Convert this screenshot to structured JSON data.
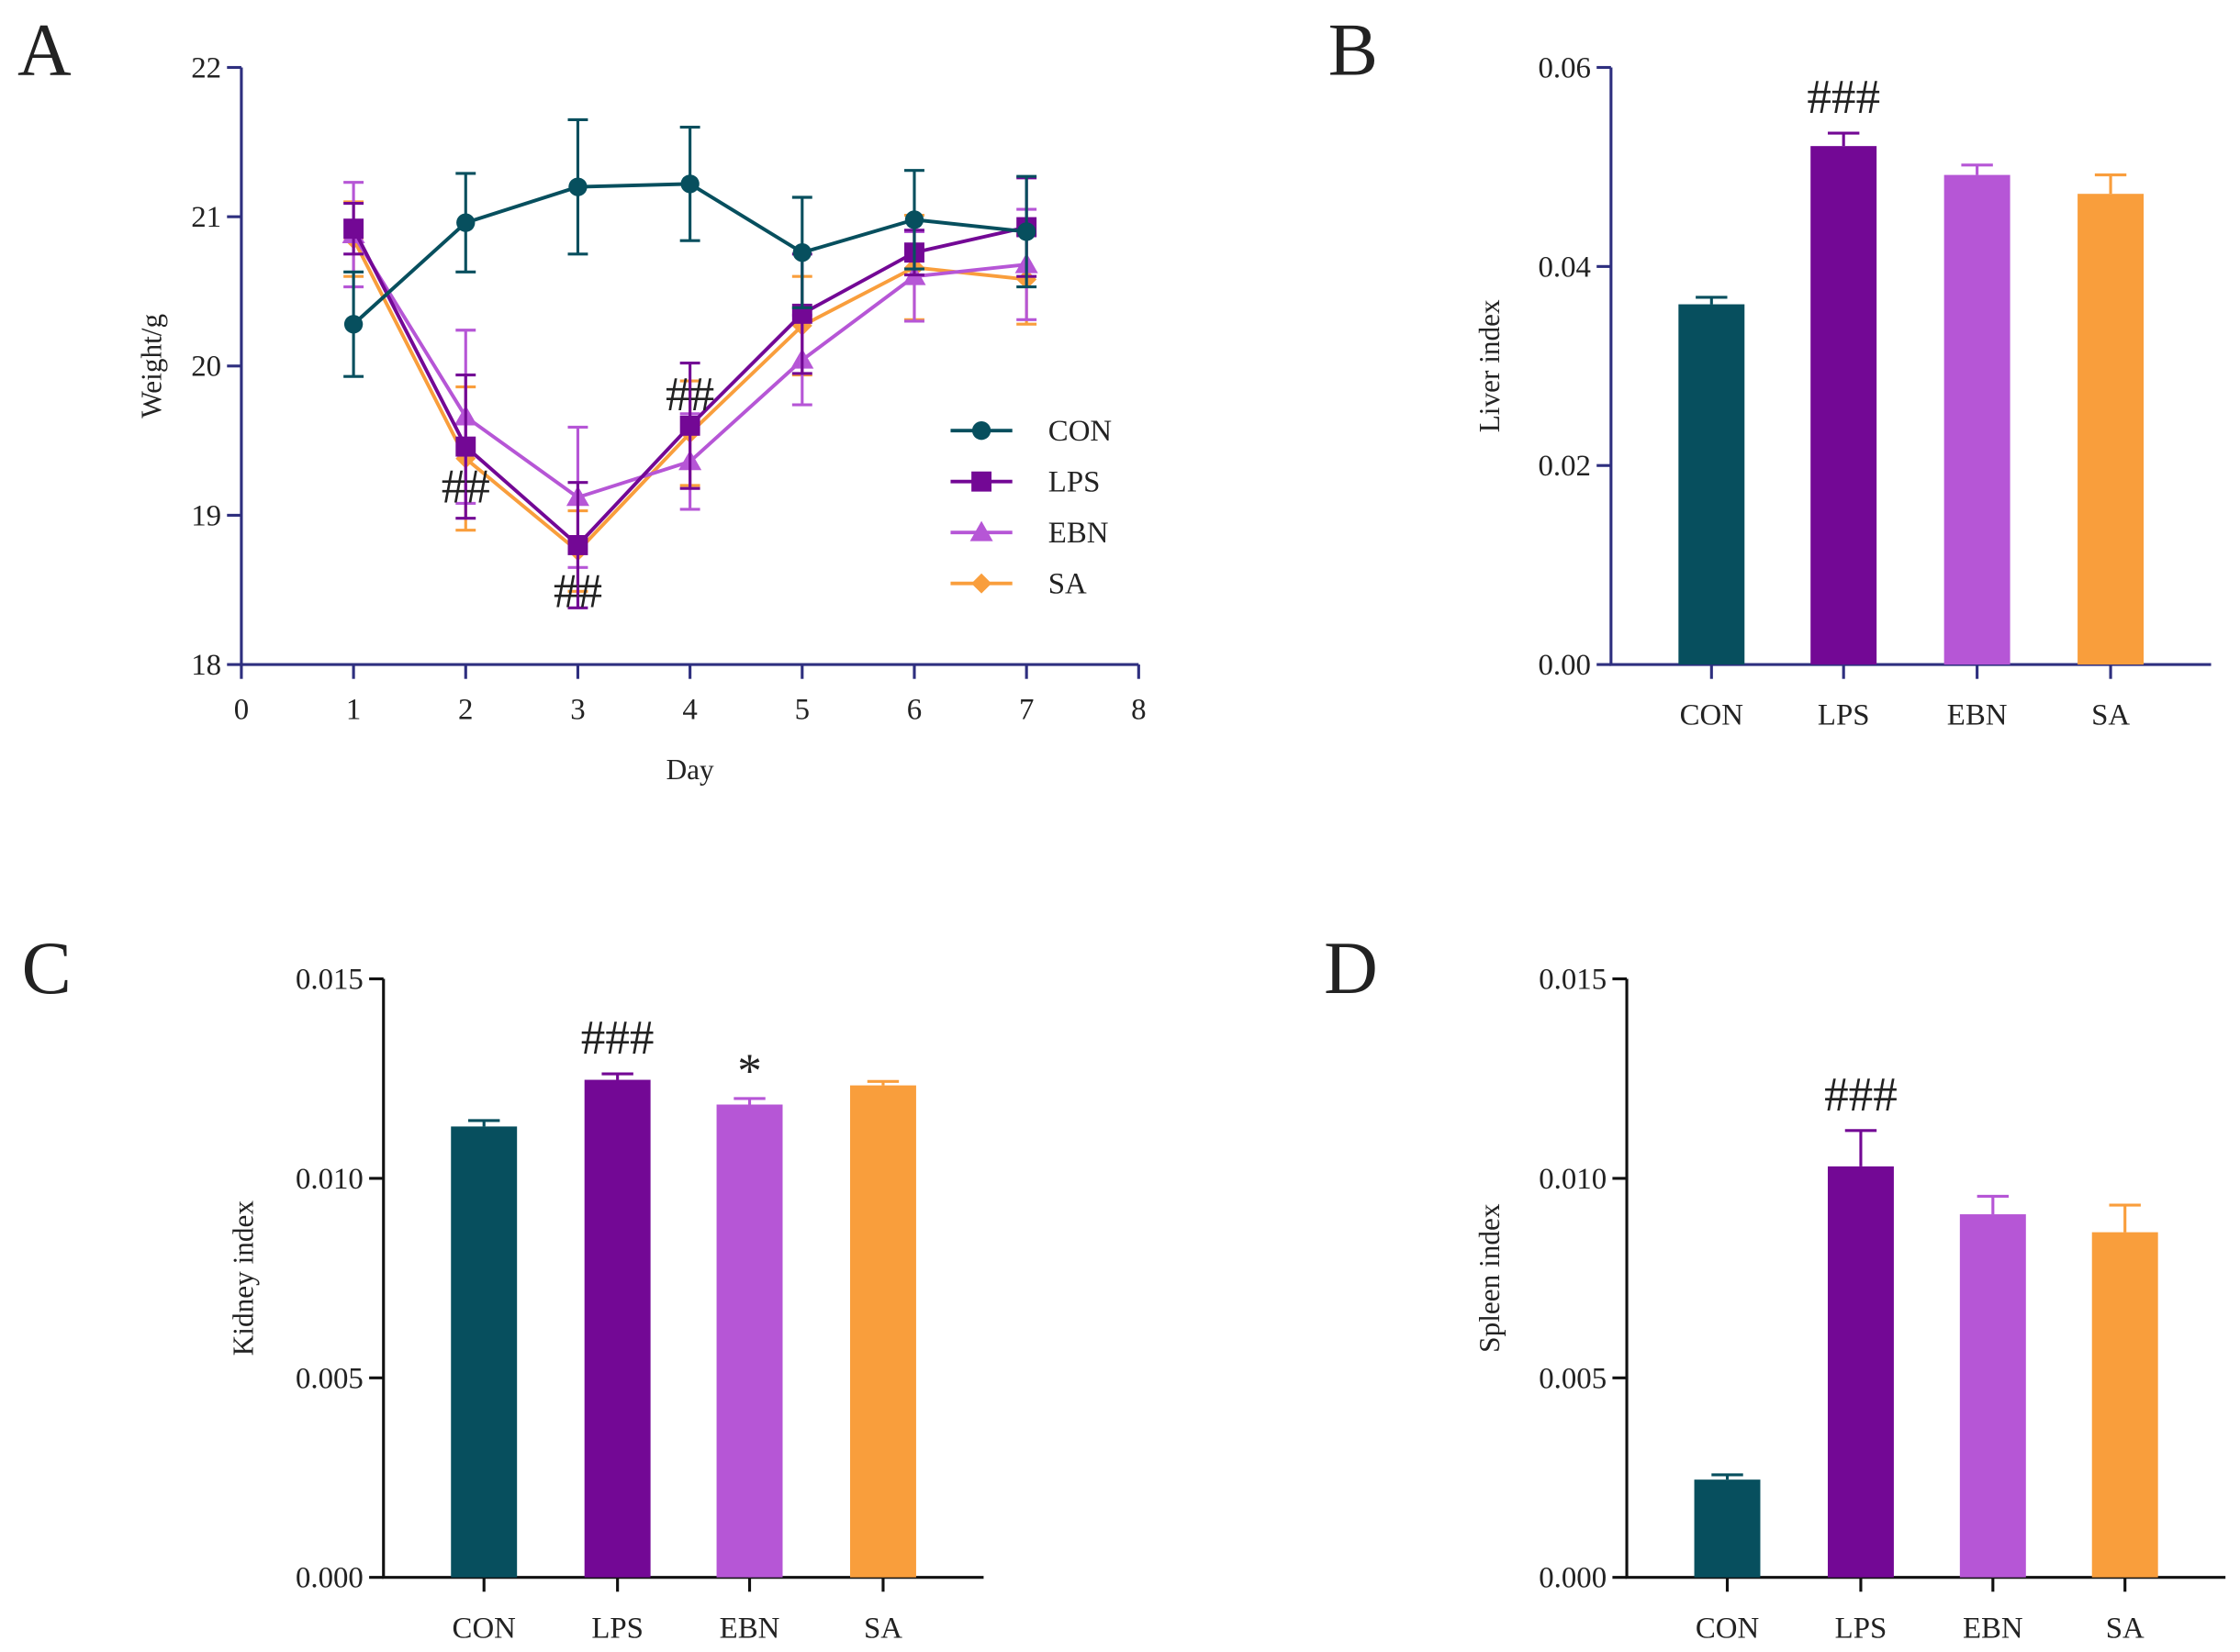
{
  "colors": {
    "CON": "#074f5e",
    "LPS": "#730895",
    "EBN": "#b656d6",
    "SA": "#f99e3c",
    "axis_ab": "#2e2f7f",
    "axis_cd": "#111111"
  },
  "chart_data": [
    {
      "panel": "A",
      "type": "line",
      "xlabel": "Day",
      "ylabel": "Weight/g",
      "xlim": [
        0,
        8
      ],
      "ylim": [
        18,
        22
      ],
      "xticks": [
        "0",
        "1",
        "2",
        "3",
        "4",
        "5",
        "6",
        "7",
        "8"
      ],
      "yticks": [
        "18",
        "19",
        "20",
        "21",
        "22"
      ],
      "legend_position": "right",
      "x": [
        1,
        2,
        3,
        4,
        5,
        6,
        7
      ],
      "series": [
        {
          "name": "CON",
          "marker": "circle",
          "values": [
            20.28,
            20.96,
            21.2,
            21.22,
            20.76,
            20.98,
            20.9
          ],
          "errors": [
            0.35,
            0.33,
            0.45,
            0.38,
            0.37,
            0.33,
            0.37
          ]
        },
        {
          "name": "LPS",
          "marker": "square",
          "values": [
            20.92,
            19.46,
            18.8,
            19.6,
            20.35,
            20.76,
            20.93
          ],
          "errors": [
            0.17,
            0.48,
            0.42,
            0.42,
            0.4,
            0.15,
            0.33
          ]
        },
        {
          "name": "EBN",
          "marker": "triangle",
          "values": [
            20.88,
            19.66,
            19.12,
            19.36,
            20.04,
            20.6,
            20.68
          ],
          "errors": [
            0.35,
            0.58,
            0.47,
            0.32,
            0.3,
            0.3,
            0.37
          ]
        },
        {
          "name": "SA",
          "marker": "diamond",
          "values": [
            20.85,
            19.38,
            18.76,
            19.55,
            20.27,
            20.66,
            20.58
          ],
          "errors": [
            0.25,
            0.48,
            0.27,
            0.35,
            0.33,
            0.35,
            0.3
          ]
        }
      ],
      "annotations": [
        {
          "text": "##",
          "x": 2,
          "y": 19.2
        },
        {
          "text": "##",
          "x": 3,
          "y": 18.5
        },
        {
          "text": "##",
          "x": 4,
          "y": 19.82
        }
      ]
    },
    {
      "panel": "B",
      "type": "bar",
      "ylabel": "Liver index",
      "ylim": [
        0,
        0.06
      ],
      "yticks": [
        "0.00",
        "0.02",
        "0.04",
        "0.06"
      ],
      "categories": [
        "CON",
        "LPS",
        "EBN",
        "SA"
      ],
      "values": [
        0.0362,
        0.0521,
        0.0492,
        0.0473
      ],
      "errors": [
        0.0007,
        0.0013,
        0.001,
        0.0019
      ],
      "annotations": [
        {
          "text": "###",
          "category": "LPS"
        }
      ]
    },
    {
      "panel": "C",
      "type": "bar",
      "ylabel": "Kidney index",
      "ylim": [
        0,
        0.015
      ],
      "yticks": [
        "0.000",
        "0.005",
        "0.010",
        "0.015"
      ],
      "categories": [
        "CON",
        "LPS",
        "EBN",
        "SA"
      ],
      "values": [
        0.0113,
        0.01247,
        0.01185,
        0.01233
      ],
      "errors": [
        0.00015,
        0.00015,
        0.00015,
        0.0001
      ],
      "annotations": [
        {
          "text": "###",
          "category": "LPS"
        },
        {
          "text": "*",
          "category": "EBN"
        }
      ]
    },
    {
      "panel": "D",
      "type": "bar",
      "ylabel": "Spleen index",
      "ylim": [
        0,
        0.015
      ],
      "yticks": [
        "0.000",
        "0.005",
        "0.010",
        "0.015"
      ],
      "categories": [
        "CON",
        "LPS",
        "EBN",
        "SA"
      ],
      "values": [
        0.00245,
        0.0103,
        0.0091,
        0.00865
      ],
      "errors": [
        0.00012,
        0.0009,
        0.00045,
        0.00068
      ],
      "annotations": [
        {
          "text": "###",
          "category": "LPS"
        }
      ]
    }
  ]
}
